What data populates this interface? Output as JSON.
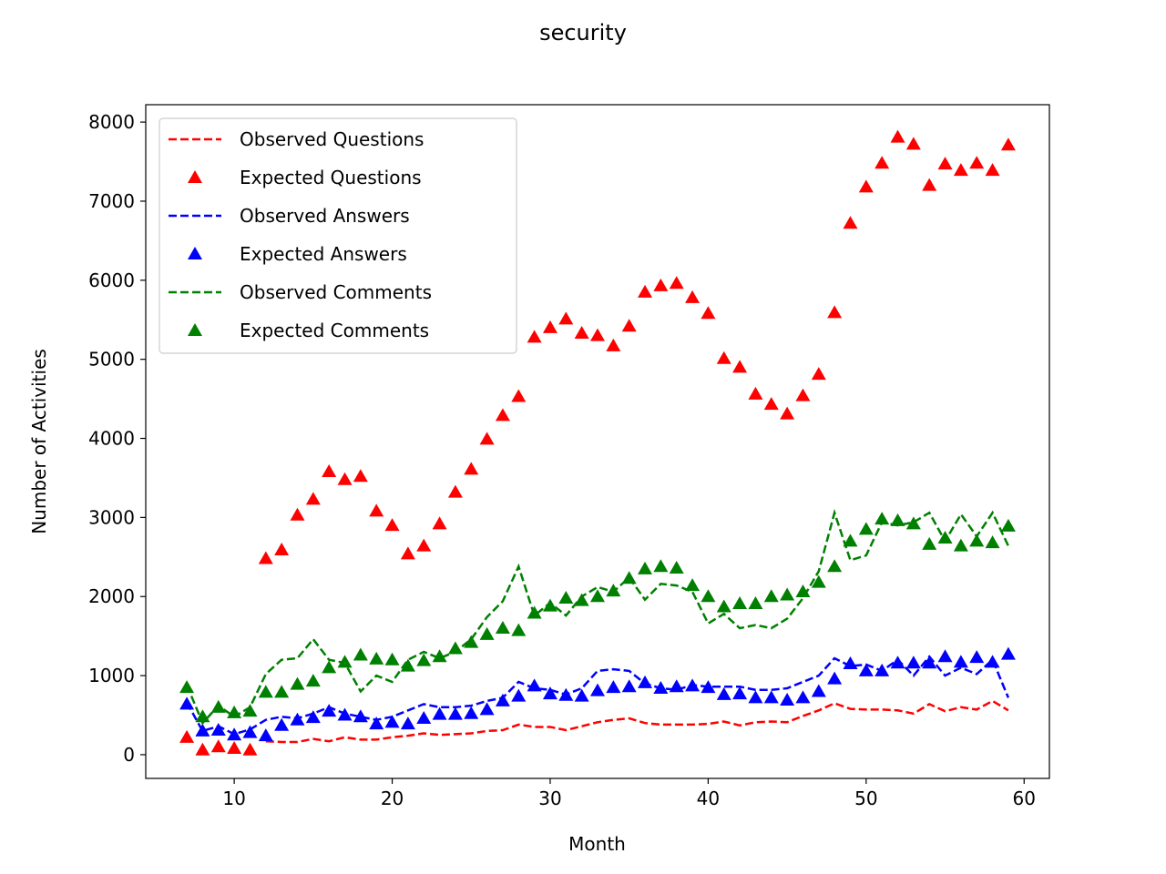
{
  "chart_data": {
    "type": "line",
    "title": "security",
    "xlabel": "Month",
    "ylabel": "Number of Activities",
    "xlim": [
      4.4,
      61.6
    ],
    "ylim": [
      -300,
      8220
    ],
    "xticks": [
      10,
      20,
      30,
      40,
      50,
      60
    ],
    "yticks": [
      0,
      1000,
      2000,
      3000,
      4000,
      5000,
      6000,
      7000,
      8000
    ],
    "grid": false,
    "legend_position": "top-left",
    "x": [
      7,
      8,
      9,
      10,
      11,
      12,
      13,
      14,
      15,
      16,
      17,
      18,
      19,
      20,
      21,
      22,
      23,
      24,
      25,
      26,
      27,
      28,
      29,
      30,
      31,
      32,
      33,
      34,
      35,
      36,
      37,
      38,
      39,
      40,
      41,
      42,
      43,
      44,
      45,
      46,
      47,
      48,
      49,
      50,
      51,
      52,
      53,
      54,
      55,
      56,
      57,
      58,
      59
    ],
    "series": [
      {
        "name": "Observed Questions",
        "style": "dashed",
        "color": "#ff0000",
        "values": [
          null,
          null,
          null,
          null,
          null,
          170,
          160,
          160,
          200,
          170,
          220,
          190,
          190,
          220,
          240,
          270,
          250,
          260,
          270,
          300,
          310,
          380,
          350,
          350,
          310,
          360,
          410,
          440,
          460,
          400,
          380,
          380,
          380,
          390,
          420,
          370,
          410,
          420,
          410,
          490,
          560,
          650,
          580,
          570,
          570,
          560,
          520,
          640,
          550,
          600,
          570,
          680,
          560
        ]
      },
      {
        "name": "Expected Questions",
        "style": "triangle",
        "color": "#ff0000",
        "values": [
          220,
          60,
          100,
          80,
          60,
          2480,
          2590,
          3030,
          3230,
          3580,
          3480,
          3520,
          3080,
          2900,
          2540,
          2640,
          2920,
          3320,
          3610,
          3990,
          4290,
          4530,
          5280,
          5400,
          5510,
          5330,
          5300,
          5170,
          5420,
          5850,
          5930,
          5960,
          5780,
          5580,
          5010,
          4900,
          4560,
          4430,
          4310,
          4540,
          4810,
          5590,
          6720,
          7180,
          7480,
          7810,
          7720,
          7200,
          7470,
          7390,
          7480,
          7390,
          7710
        ]
      },
      {
        "name": "Observed Answers",
        "style": "dashed",
        "color": "#0000ff",
        "values": [
          660,
          300,
          360,
          260,
          320,
          440,
          480,
          460,
          520,
          600,
          520,
          480,
          440,
          480,
          560,
          640,
          600,
          600,
          620,
          680,
          720,
          920,
          840,
          820,
          760,
          840,
          1060,
          1080,
          1060,
          900,
          840,
          820,
          880,
          860,
          860,
          860,
          820,
          820,
          840,
          920,
          1000,
          1220,
          1120,
          1140,
          1060,
          1200,
          1000,
          1240,
          1000,
          1100,
          1020,
          1200,
          720
        ]
      },
      {
        "name": "Expected Answers",
        "style": "triangle",
        "color": "#0000ff",
        "values": [
          640,
          300,
          310,
          250,
          280,
          240,
          370,
          440,
          470,
          550,
          500,
          480,
          390,
          410,
          390,
          460,
          510,
          510,
          520,
          570,
          680,
          740,
          870,
          770,
          750,
          740,
          810,
          850,
          860,
          910,
          840,
          860,
          870,
          850,
          760,
          770,
          720,
          720,
          690,
          720,
          800,
          960,
          1150,
          1060,
          1060,
          1160,
          1160,
          1160,
          1240,
          1170,
          1230,
          1170,
          1270
        ]
      },
      {
        "name": "Observed Comments",
        "style": "dashed",
        "color": "#008000",
        "values": [
          880,
          400,
          620,
          480,
          600,
          1020,
          1200,
          1220,
          1460,
          1200,
          1160,
          800,
          1000,
          920,
          1200,
          1300,
          1220,
          1300,
          1460,
          1740,
          1940,
          2380,
          1760,
          1920,
          1760,
          2000,
          2120,
          2060,
          2240,
          1960,
          2160,
          2140,
          2060,
          1660,
          1780,
          1600,
          1640,
          1600,
          1720,
          1980,
          2320,
          3060,
          2460,
          2520,
          2940,
          2900,
          2940,
          3060,
          2700,
          3040,
          2760,
          3060,
          2640
        ]
      },
      {
        "name": "Expected Comments",
        "style": "triangle",
        "color": "#008000",
        "values": [
          850,
          480,
          600,
          530,
          550,
          790,
          790,
          890,
          930,
          1100,
          1170,
          1260,
          1210,
          1200,
          1120,
          1190,
          1240,
          1340,
          1420,
          1520,
          1600,
          1570,
          1790,
          1880,
          1980,
          1950,
          2000,
          2070,
          2230,
          2350,
          2380,
          2360,
          2140,
          2000,
          1870,
          1910,
          1910,
          2000,
          2020,
          2060,
          2180,
          2380,
          2700,
          2850,
          2980,
          2960,
          2920,
          2660,
          2740,
          2640,
          2700,
          2680,
          2890
        ]
      }
    ]
  }
}
